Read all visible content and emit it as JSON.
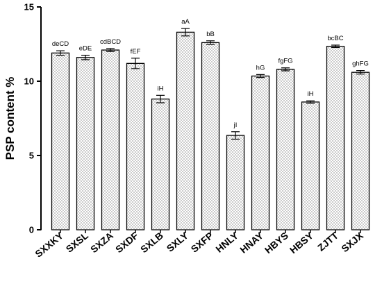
{
  "chart_data": {
    "type": "bar",
    "ylabel": "PSP content %",
    "xlabel": "",
    "ylim": [
      0,
      15
    ],
    "yticks": [
      0,
      5,
      10,
      15
    ],
    "categories": [
      "SXXKY",
      "SXSL",
      "SXZA",
      "SXDF",
      "SXLB",
      "SXLY",
      "SXFP",
      "HNLY",
      "HNAY",
      "HBYS",
      "HBSY",
      "ZJTT",
      "SXJX"
    ],
    "values": [
      11.9,
      11.6,
      12.1,
      11.2,
      8.8,
      13.3,
      12.6,
      6.35,
      10.35,
      10.8,
      8.6,
      12.35,
      10.6
    ],
    "errors": [
      0.15,
      0.15,
      0.1,
      0.35,
      0.25,
      0.25,
      0.12,
      0.25,
      0.1,
      0.1,
      0.08,
      0.08,
      0.12
    ],
    "labels": [
      "deCD",
      "eDE",
      "cdBCD",
      "fEF",
      "iH",
      "aA",
      "bB",
      "jI",
      "hG",
      "fgFG",
      "iH",
      "bcBC",
      "ghFG"
    ],
    "grid": false,
    "bar_fill": "dotted",
    "colors": {
      "bar_stroke": "#000000",
      "bar_dots": "#000000",
      "background": "#ffffff"
    }
  }
}
